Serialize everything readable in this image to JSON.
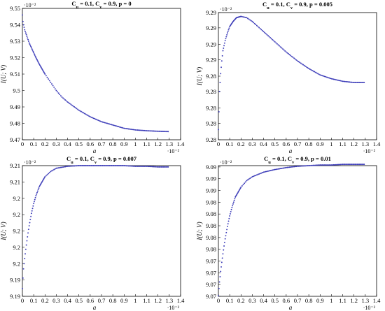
{
  "chart_data": [
    {
      "type": "scatter",
      "title_main": "C",
      "title_parts": [
        {
          "t": "C"
        },
        {
          "t": "u",
          "sub": true
        },
        {
          "t": " = 0.1, C"
        },
        {
          "t": "v",
          "sub": true
        },
        {
          "t": " = 0.9, p = 0"
        }
      ],
      "xlabel": "a",
      "ylabel": "I(U; V)",
      "x_multiplier": "·10⁻²",
      "y_multiplier": "·10⁻²",
      "xlim": [
        0,
        1.4
      ],
      "ylim": [
        9.47,
        9.55
      ],
      "x_ticks": [
        "0",
        "0.1",
        "0.2",
        "0.3",
        "0.4",
        "0.5",
        "0.6",
        "0.7",
        "0.8",
        "0.9",
        "1",
        "1.1",
        "1.2",
        "1.3",
        "1.4"
      ],
      "y_ticks": [
        {
          "v": 9.47,
          "label": "9.47"
        },
        {
          "v": 9.48,
          "label": "9.48"
        },
        {
          "v": 9.49,
          "label": "9.49"
        },
        {
          "v": 9.5,
          "label": "9.5"
        },
        {
          "v": 9.51,
          "label": "9.51"
        },
        {
          "v": 9.52,
          "label": "9.52"
        },
        {
          "v": 9.53,
          "label": "9.53"
        },
        {
          "v": 9.54,
          "label": "9.54"
        },
        {
          "v": 9.55,
          "label": "9.55"
        }
      ],
      "series": [
        {
          "color": "#3b3bb8",
          "points": [
            [
              0,
              9.546
            ],
            [
              0.005,
              9.542
            ],
            [
              0.01,
              9.54
            ],
            [
              0.02,
              9.537
            ],
            [
              0.03,
              9.535
            ],
            [
              0.04,
              9.533
            ],
            [
              0.05,
              9.531
            ],
            [
              0.06,
              9.529
            ],
            [
              0.08,
              9.526
            ],
            [
              0.1,
              9.523
            ],
            [
              0.12,
              9.52
            ],
            [
              0.15,
              9.516
            ],
            [
              0.2,
              9.51
            ],
            [
              0.25,
              9.505
            ],
            [
              0.3,
              9.5
            ],
            [
              0.35,
              9.496
            ],
            [
              0.4,
              9.493
            ],
            [
              0.5,
              9.488
            ],
            [
              0.6,
              9.484
            ],
            [
              0.7,
              9.481
            ],
            [
              0.8,
              9.479
            ],
            [
              0.9,
              9.477
            ],
            [
              1.0,
              9.476
            ],
            [
              1.1,
              9.4755
            ],
            [
              1.2,
              9.4752
            ],
            [
              1.29,
              9.475
            ]
          ]
        }
      ]
    },
    {
      "type": "scatter",
      "title_parts": [
        {
          "t": "C"
        },
        {
          "t": "u",
          "sub": true
        },
        {
          "t": " = 0.1, C"
        },
        {
          "t": "v",
          "sub": true
        },
        {
          "t": " = 0.9, p = 0.005"
        }
      ],
      "xlabel": "a",
      "ylabel": "I(U; V)",
      "x_multiplier": "·10⁻²",
      "y_multiplier": "·10⁻²",
      "xlim": [
        0,
        1.4
      ],
      "ylim": [
        9.28,
        9.29
      ],
      "x_ticks": [
        "0",
        "0.1",
        "0.2",
        "0.3",
        "0.4",
        "0.5",
        "0.6",
        "0.7",
        "0.8",
        "0.9",
        "1",
        "1.1",
        "1.2",
        "1.3",
        "1.4"
      ],
      "y_ticks": [
        {
          "v": 9.28,
          "label": "9.28"
        },
        {
          "v": 9.2813,
          "label": "9.28"
        },
        {
          "v": 9.2825,
          "label": "9.28"
        },
        {
          "v": 9.2838,
          "label": "9.28"
        },
        {
          "v": 9.285,
          "label": "9.28"
        },
        {
          "v": 9.2863,
          "label": "9.29"
        },
        {
          "v": 9.2875,
          "label": "9.29"
        },
        {
          "v": 9.2888,
          "label": "9.29"
        },
        {
          "v": 9.29,
          "label": "9.29"
        }
      ],
      "series": [
        {
          "color": "#3b3bb8",
          "points": [
            [
              0,
              9.2808
            ],
            [
              0.005,
              9.2822
            ],
            [
              0.01,
              9.2838
            ],
            [
              0.02,
              9.2852
            ],
            [
              0.03,
              9.2862
            ],
            [
              0.04,
              9.287
            ],
            [
              0.06,
              9.2878
            ],
            [
              0.08,
              9.2884
            ],
            [
              0.1,
              9.2889
            ],
            [
              0.13,
              9.2893
            ],
            [
              0.16,
              9.2896
            ],
            [
              0.2,
              9.2897
            ],
            [
              0.25,
              9.2896
            ],
            [
              0.3,
              9.2893
            ],
            [
              0.4,
              9.2885
            ],
            [
              0.5,
              9.2877
            ],
            [
              0.6,
              9.2869
            ],
            [
              0.7,
              9.2862
            ],
            [
              0.8,
              9.2856
            ],
            [
              0.9,
              9.2851
            ],
            [
              1.0,
              9.2848
            ],
            [
              1.1,
              9.2846
            ],
            [
              1.2,
              9.2845
            ],
            [
              1.29,
              9.2845
            ]
          ]
        }
      ]
    },
    {
      "type": "scatter",
      "title_parts": [
        {
          "t": "C"
        },
        {
          "t": "u",
          "sub": true
        },
        {
          "t": " = 0.1, C"
        },
        {
          "t": "v",
          "sub": true
        },
        {
          "t": " = 0.9, p = 0.007"
        }
      ],
      "xlabel": "a",
      "ylabel": "I(U; V)",
      "x_multiplier": "·10⁻²",
      "y_multiplier": "·10⁻²",
      "xlim": [
        0,
        1.4
      ],
      "ylim": [
        9.19,
        9.21
      ],
      "x_ticks": [
        "0",
        "0.1",
        "0.2",
        "0.3",
        "0.4",
        "0.5",
        "0.6",
        "0.7",
        "0.8",
        "0.9",
        "1",
        "1.1",
        "1.2",
        "1.3",
        "1.4"
      ],
      "y_ticks": [
        {
          "v": 9.19,
          "label": "9.19"
        },
        {
          "v": 9.1925,
          "label": "9.19"
        },
        {
          "v": 9.195,
          "label": "9.2"
        },
        {
          "v": 9.1975,
          "label": "9.2"
        },
        {
          "v": 9.2,
          "label": "9.2"
        },
        {
          "v": 9.2025,
          "label": "9.2"
        },
        {
          "v": 9.205,
          "label": "9.2"
        },
        {
          "v": 9.2075,
          "label": "9.21"
        },
        {
          "v": 9.21,
          "label": "9.21"
        }
      ],
      "series": [
        {
          "color": "#3b3bb8",
          "points": [
            [
              0,
              9.1912
            ],
            [
              0.005,
              9.1928
            ],
            [
              0.01,
              9.1942
            ],
            [
              0.02,
              9.1958
            ],
            [
              0.03,
              9.1972
            ],
            [
              0.04,
              9.1985
            ],
            [
              0.05,
              9.1997
            ],
            [
              0.06,
              9.2008
            ],
            [
              0.08,
              9.2027
            ],
            [
              0.1,
              9.2042
            ],
            [
              0.12,
              9.2054
            ],
            [
              0.15,
              9.2068
            ],
            [
              0.2,
              9.2083
            ],
            [
              0.25,
              9.2091
            ],
            [
              0.3,
              9.2096
            ],
            [
              0.4,
              9.2099
            ],
            [
              0.5,
              9.21
            ],
            [
              0.6,
              9.21
            ],
            [
              0.7,
              9.21
            ],
            [
              0.8,
              9.21
            ],
            [
              0.9,
              9.21
            ],
            [
              1.0,
              9.2099
            ],
            [
              1.1,
              9.2099
            ],
            [
              1.2,
              9.2098
            ],
            [
              1.29,
              9.2098
            ]
          ]
        }
      ]
    },
    {
      "type": "scatter",
      "title_parts": [
        {
          "t": "C"
        },
        {
          "t": "u",
          "sub": true
        },
        {
          "t": " = 0.1, C"
        },
        {
          "t": "v",
          "sub": true
        },
        {
          "t": " = 0.9, p = 0.01"
        }
      ],
      "xlabel": "a",
      "ylabel": "I(U; V)",
      "x_multiplier": "·10⁻²",
      "y_multiplier": "·10⁻²",
      "xlim": [
        0,
        1.4
      ],
      "ylim": [
        9.07,
        9.09
      ],
      "x_ticks": [
        "0",
        "0.1",
        "0.2",
        "0.3",
        "0.4",
        "0.5",
        "0.6",
        "0.7",
        "0.8",
        "0.9",
        "1",
        "1.1",
        "1.2",
        "1.3",
        "1.4"
      ],
      "y_ticks": [
        {
          "v": 9.07,
          "label": "9.07"
        },
        {
          "v": 9.0718,
          "label": "9.07"
        },
        {
          "v": 9.0736,
          "label": "9.07"
        },
        {
          "v": 9.0754,
          "label": "9.07"
        },
        {
          "v": 9.0772,
          "label": "9.08"
        },
        {
          "v": 9.079,
          "label": "9.08"
        },
        {
          "v": 9.0808,
          "label": "9.08"
        },
        {
          "v": 9.0826,
          "label": "9.08"
        },
        {
          "v": 9.0844,
          "label": "9.08"
        },
        {
          "v": 9.0862,
          "label": "9.09"
        },
        {
          "v": 9.088,
          "label": "9.09"
        },
        {
          "v": 9.0898,
          "label": "9.09"
        }
      ],
      "series": [
        {
          "color": "#3b3bb8",
          "points": [
            [
              0,
              9.0701
            ],
            [
              0.005,
              9.0712
            ],
            [
              0.01,
              9.0722
            ],
            [
              0.02,
              9.0738
            ],
            [
              0.03,
              9.0752
            ],
            [
              0.04,
              9.0765
            ],
            [
              0.05,
              9.0777
            ],
            [
              0.06,
              9.0788
            ],
            [
              0.08,
              9.0807
            ],
            [
              0.1,
              9.0823
            ],
            [
              0.12,
              9.0836
            ],
            [
              0.15,
              9.0852
            ],
            [
              0.2,
              9.0867
            ],
            [
              0.25,
              9.0877
            ],
            [
              0.3,
              9.0883
            ],
            [
              0.4,
              9.089
            ],
            [
              0.5,
              9.0894
            ],
            [
              0.6,
              9.0897
            ],
            [
              0.7,
              9.0899
            ],
            [
              0.8,
              9.09
            ],
            [
              0.9,
              9.0901
            ],
            [
              1.0,
              9.0901
            ],
            [
              1.1,
              9.0902
            ],
            [
              1.2,
              9.0902
            ],
            [
              1.29,
              9.0902
            ]
          ]
        }
      ]
    }
  ]
}
